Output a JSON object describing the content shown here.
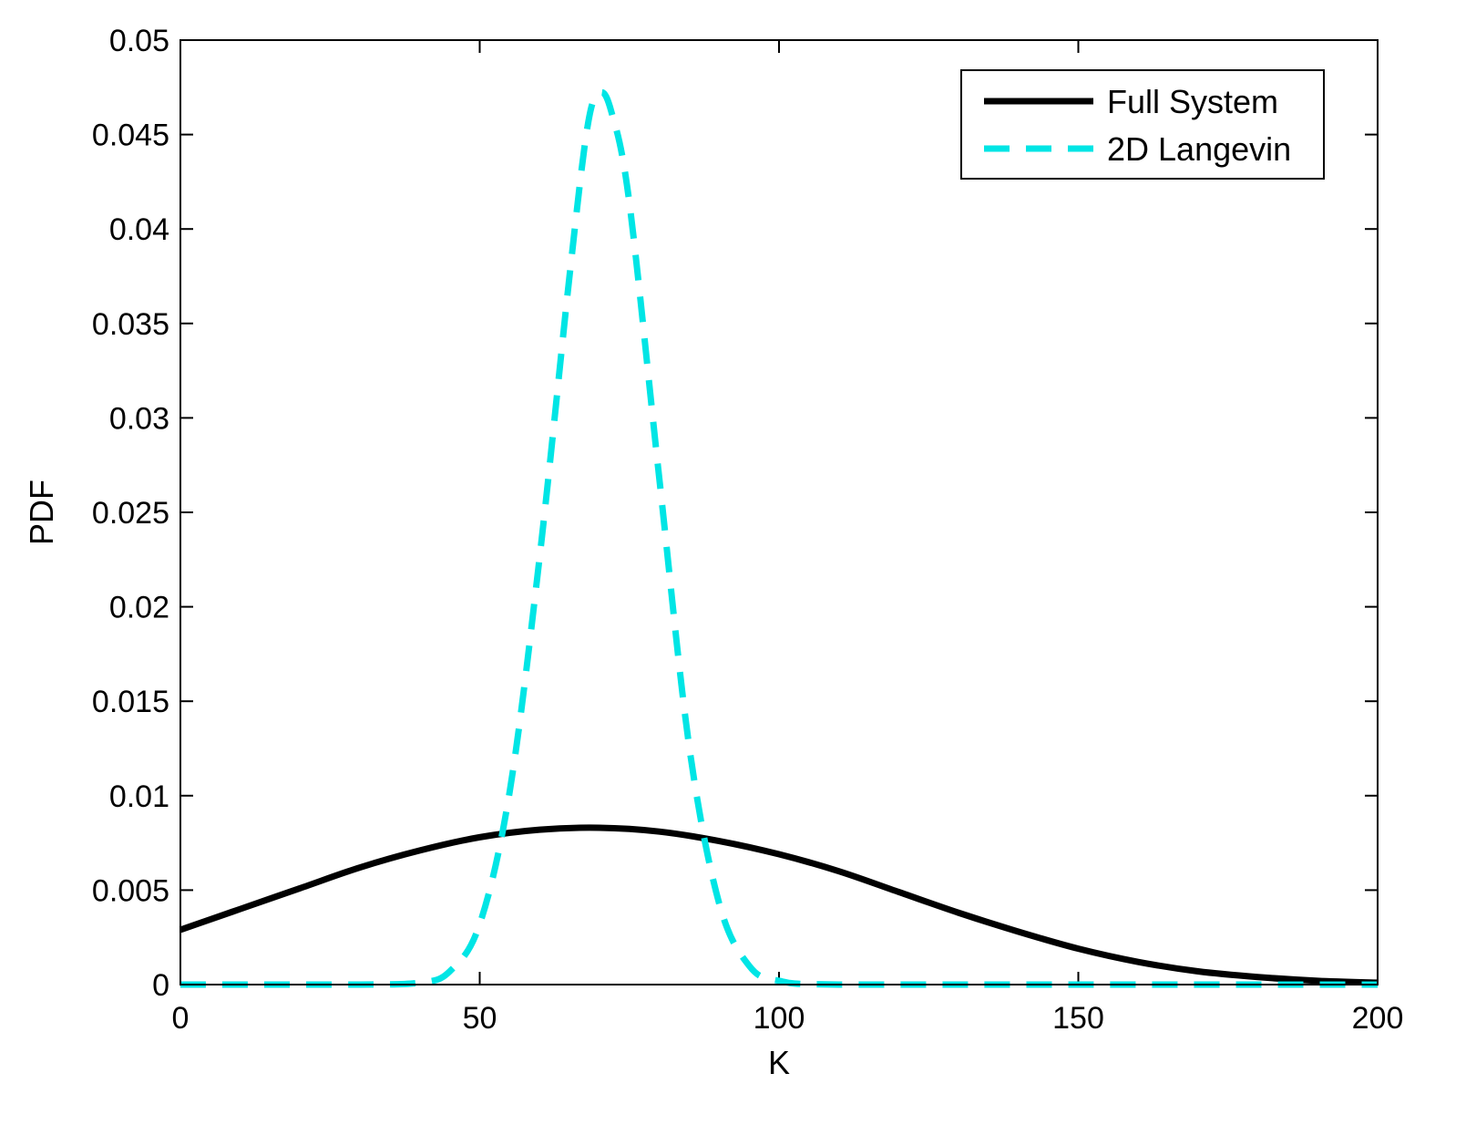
{
  "chart_data": {
    "type": "line",
    "title": "",
    "xlabel": "K",
    "ylabel": "PDF",
    "xlim": [
      0,
      200
    ],
    "ylim": [
      0,
      0.05
    ],
    "x_ticks": [
      0,
      50,
      100,
      150,
      200
    ],
    "x_tick_labels": [
      "0",
      "50",
      "100",
      "150",
      "200"
    ],
    "y_ticks": [
      0,
      0.005,
      0.01,
      0.015,
      0.02,
      0.025,
      0.03,
      0.035,
      0.04,
      0.045,
      0.05
    ],
    "y_tick_labels": [
      "0",
      "0.005",
      "0.01",
      "0.015",
      "0.02",
      "0.025",
      "0.03",
      "0.035",
      "0.04",
      "0.045",
      "0.05"
    ],
    "grid": false,
    "legend_position": "top-right",
    "series": [
      {
        "name": "Full System",
        "color": "#000000",
        "style": "solid",
        "x": [
          0,
          10,
          20,
          30,
          40,
          50,
          60,
          70,
          80,
          90,
          100,
          110,
          120,
          130,
          140,
          150,
          160,
          170,
          180,
          190,
          200
        ],
        "y": [
          0.0029,
          0.004,
          0.0051,
          0.0062,
          0.0071,
          0.0078,
          0.0082,
          0.0083,
          0.0081,
          0.0076,
          0.0069,
          0.006,
          0.0049,
          0.0038,
          0.0028,
          0.0019,
          0.0012,
          0.0007,
          0.0004,
          0.0002,
          0.0001
        ]
      },
      {
        "name": "2D Langevin",
        "color": "#00e5e5",
        "style": "dashed",
        "x": [
          0,
          30,
          40,
          45,
          50,
          55,
          60,
          65,
          68,
          70,
          72,
          75,
          80,
          85,
          90,
          95,
          100,
          110,
          150,
          200
        ],
        "y": [
          0,
          0,
          0.0001,
          0.0007,
          0.0032,
          0.0102,
          0.0226,
          0.0375,
          0.0454,
          0.0472,
          0.0462,
          0.0414,
          0.0268,
          0.0126,
          0.0043,
          0.001,
          0.0002,
          0,
          0,
          0
        ]
      }
    ]
  }
}
